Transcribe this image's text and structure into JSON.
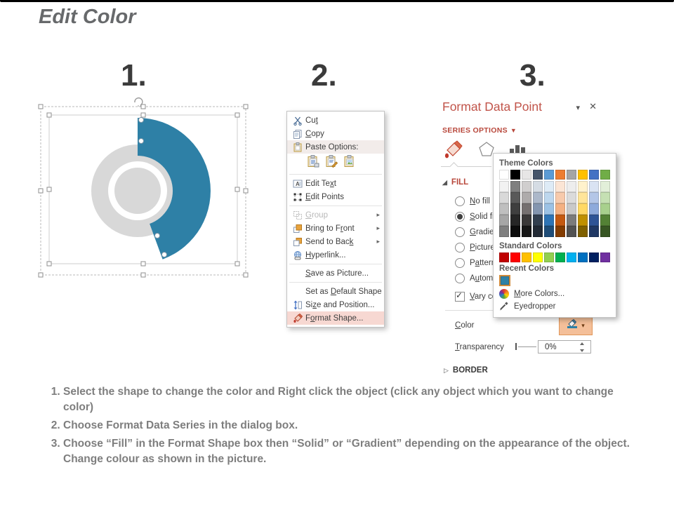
{
  "page": {
    "title": "Edit Color"
  },
  "steps": [
    "1.",
    "2.",
    "3."
  ],
  "colors": {
    "donut_blue": "#2E80A6",
    "donut_gray": "#D8D8D8",
    "accent_red": "#C1544A",
    "menu_highlight": "#F7D8D2",
    "color_button_highlight": "#F4BF99"
  },
  "context_menu": {
    "submenu_arrow": "▸",
    "items": [
      {
        "label": "Cu[t]",
        "icon": "cut-icon"
      },
      {
        "label": "[C]opy",
        "icon": "copy-icon"
      },
      {
        "label": "Paste Options:",
        "icon": "paste-icon"
      },
      {
        "label": "Edit Te[x]t",
        "icon": "edit-text-icon"
      },
      {
        "label": "[E]dit Points",
        "icon": "edit-points-icon"
      },
      {
        "label": "[G]roup",
        "icon": "group-icon",
        "disabled": true,
        "submenu": true
      },
      {
        "label": "Bring to F[r]ont",
        "icon": "bring-to-front-icon",
        "submenu": true
      },
      {
        "label": "Send to Bac[k]",
        "icon": "send-to-back-icon",
        "submenu": true
      },
      {
        "label": "[H]yperlink...",
        "icon": "hyperlink-icon"
      },
      {
        "label": "[S]ave as Picture..."
      },
      {
        "label": "Set as [D]efault Shape"
      },
      {
        "label": "Si[z]e and Position...",
        "icon": "size-position-icon"
      },
      {
        "label": "F[o]rmat Shape...",
        "icon": "format-shape-icon",
        "highlight": true
      }
    ]
  },
  "format_pane": {
    "title": "Format Data Point",
    "collapse_glyph": "▾",
    "close_glyph": "✕",
    "series_options": "SERIES OPTIONS",
    "series_arrow": "▼",
    "fill_label": "FILL",
    "fill_expanded_glyph": "◢",
    "border_label": "BORDER",
    "border_collapsed_glyph": "▷",
    "radios": [
      {
        "label": "[N]o fill"
      },
      {
        "label": "[S]olid fi",
        "selected": true
      },
      {
        "label": "[G]radie"
      },
      {
        "label": "[P]icture"
      },
      {
        "label": "P[a]ttern"
      },
      {
        "label": "A[u]tom"
      }
    ],
    "checkbox_label": "[V]ary co",
    "color_label": "[C]olor",
    "color_dropdown_glyph": "▾",
    "transparency_label": "[T]ransparency",
    "transparency_value": "0%"
  },
  "popup": {
    "theme_header": "Theme Colors",
    "standard_header": "Standard Colors",
    "recent_header": "Recent Colors",
    "more_colors_label": "[M]ore Colors...",
    "eyedropper_label": "Eyedropper",
    "theme_main": [
      "#FFFFFF",
      "#000000",
      "#E7E6E6",
      "#44546A",
      "#5B9BD5",
      "#ED7D31",
      "#A5A5A5",
      "#FFC000",
      "#4472C4",
      "#70AD47"
    ],
    "theme_variants": [
      [
        "#F2F2F2",
        "#7F7F7F",
        "#D0CECE",
        "#D5DCE4",
        "#DEEBF6",
        "#FBE5D5",
        "#EDEDED",
        "#FFF2CC",
        "#DAE3F3",
        "#E2EFD9"
      ],
      [
        "#D9D9D9",
        "#595959",
        "#AEABAB",
        "#ACB8CA",
        "#BDD7EE",
        "#F7CAAC",
        "#DBDBDB",
        "#FFE599",
        "#B4C6E7",
        "#C5E0B3"
      ],
      [
        "#BFBFBF",
        "#3F3F3F",
        "#757070",
        "#8496B0",
        "#9CC2E5",
        "#F4B183",
        "#C9C9C9",
        "#FFD965",
        "#8EAADB",
        "#A8D08D"
      ],
      [
        "#A6A6A6",
        "#262626",
        "#3A3838",
        "#323F4F",
        "#2E74B5",
        "#C45911",
        "#7B7B7B",
        "#BF9000",
        "#2E5496",
        "#538135"
      ],
      [
        "#7F7F7F",
        "#0C0C0C",
        "#161616",
        "#222A35",
        "#1F4D78",
        "#833C00",
        "#525252",
        "#7F6000",
        "#1F3864",
        "#375623"
      ]
    ],
    "standard_colors": [
      "#C00000",
      "#FF0000",
      "#FFC000",
      "#FFFF00",
      "#92D050",
      "#00B050",
      "#00B0F0",
      "#0070C0",
      "#002060",
      "#7030A0"
    ],
    "recent_colors": [
      "#2E80A6"
    ]
  },
  "instructions": [
    "Select the shape to change the color and Right click the object (click any object which you want to change color)",
    "Choose Format Data Series in the dialog box.",
    "Choose “Fill” in the Format Shape box then “Solid” or “Gradient” depending on the appearance of the object. Change colour as shown in the picture."
  ]
}
